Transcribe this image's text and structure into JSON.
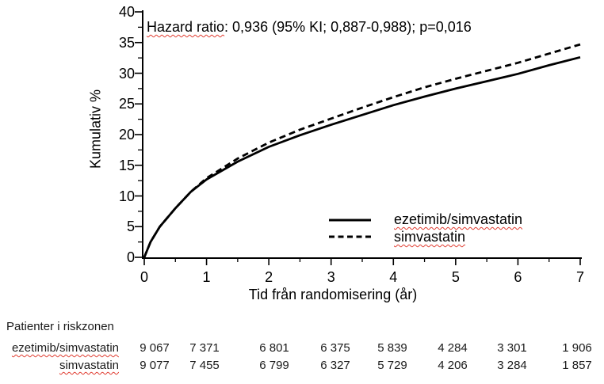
{
  "chart_data": {
    "type": "line",
    "title_annotation": {
      "underlined": "Hazard ratio",
      "rest": ": 0,936 (95% KI; 0,887-0,988); p=0,016"
    },
    "ylabel": "Kumulativ %",
    "xlabel": "Tid från randomisering (år)",
    "ylim": [
      0,
      40
    ],
    "xlim": [
      0,
      7
    ],
    "yticks": [
      0,
      5,
      10,
      15,
      20,
      25,
      30,
      35,
      40
    ],
    "y_minor_step": 2.5,
    "xticks": [
      0,
      1,
      2,
      3,
      4,
      5,
      6,
      7
    ],
    "x_minor_step": 0.5,
    "grid": false,
    "legend_position": "inside-lower-right",
    "x_years": [
      0,
      0.1,
      0.25,
      0.5,
      0.75,
      1,
      1.5,
      2,
      2.5,
      3,
      3.5,
      4,
      4.5,
      5,
      5.5,
      6,
      6.5,
      7
    ],
    "series": [
      {
        "name": "ezetimib/simvastatin",
        "style": "solid",
        "values": [
          0,
          2.5,
          5.0,
          8.0,
          10.7,
          12.7,
          15.6,
          18.0,
          19.9,
          21.6,
          23.2,
          24.8,
          26.2,
          27.5,
          28.7,
          29.9,
          31.3,
          32.6
        ]
      },
      {
        "name": "simvastatin",
        "style": "dashed",
        "values": [
          0,
          2.5,
          5.0,
          8.0,
          10.7,
          12.9,
          16.1,
          18.7,
          20.8,
          22.6,
          24.4,
          26.1,
          27.7,
          29.1,
          30.4,
          31.7,
          33.2,
          34.7
        ]
      }
    ]
  },
  "risk_table": {
    "title": "Patienter i riskzonen",
    "rows": [
      {
        "label": "ezetimib/simvastatin",
        "values": [
          "9 067",
          "7 371",
          "6 801",
          "6 375",
          "5 839",
          "4 284",
          "3 301",
          "1 906"
        ]
      },
      {
        "label": "simvastatin",
        "values": [
          "9 077",
          "7 455",
          "6 799",
          "6 327",
          "5 729",
          "4 206",
          "3 284",
          "1 857"
        ]
      }
    ]
  },
  "colors": {
    "curve": "#000000",
    "text": "#000000",
    "table_text": "#1a1a1a",
    "spellcheck_underline": "#e03c31"
  }
}
